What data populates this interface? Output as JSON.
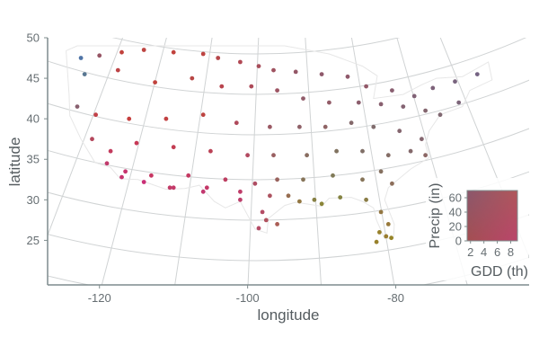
{
  "chart_data": {
    "type": "scatter",
    "title": "",
    "xlabel": "longitude",
    "ylabel": "latitude",
    "xlim": [
      -127,
      -62
    ],
    "ylim": [
      19.5,
      50
    ],
    "x_ticks": [
      "-120",
      "-100",
      "-80"
    ],
    "x_tick_values": [
      -120,
      -100,
      -80
    ],
    "y_ticks": [
      "25",
      "30",
      "35",
      "40",
      "45",
      "50"
    ],
    "y_tick_values": [
      25,
      30,
      35,
      40,
      45,
      50
    ],
    "grid": true,
    "projection": "conic",
    "legend": {
      "position": "bottom-right",
      "type": "bivariate",
      "xlabel": "GDD (th)",
      "ylabel": "Precip (in)",
      "x_ticks": [
        "2",
        "4",
        "6",
        "8"
      ],
      "x_range": [
        1.5,
        9
      ],
      "y_ticks": [
        "0",
        "20",
        "40",
        "60"
      ],
      "y_range": [
        0,
        70
      ],
      "colors": {
        "dry_cool": "#e03a10",
        "dry_warm": "#d21c9a",
        "wet_cool": "#2a7ad6",
        "wet_warm": "#8a9a10"
      }
    },
    "series": [
      {
        "color_rule": "bivariate GDD x precip",
        "x": [
          -122.5,
          -120.0,
          -117.0,
          -114.0,
          -110.0,
          -106.0,
          -104.0,
          -101.0,
          -98.5,
          -96.5,
          -93.5,
          -90.0,
          -86.5,
          -84.0,
          -80.5,
          -77.5,
          -75.0,
          -72.0,
          -69.0,
          -122.0,
          -117.5,
          -112.5,
          -107.5,
          -103.5,
          -99.5,
          -96.0,
          -92.5,
          -89.0,
          -85.0,
          -82.0,
          -79.0,
          -76.0,
          -74.0,
          -71.5,
          -123.0,
          -120.5,
          -116.0,
          -111.0,
          -106.0,
          -101.5,
          -97.0,
          -93.0,
          -89.5,
          -86.0,
          -83.0,
          -79.5,
          -76.5,
          -121.0,
          -118.5,
          -115.0,
          -110.0,
          -105.0,
          -100.0,
          -96.5,
          -92.0,
          -88.0,
          -84.5,
          -81.0,
          -78.0,
          -76.0,
          -119.0,
          -116.5,
          -113.0,
          -108.0,
          -103.0,
          -99.0,
          -96.0,
          -92.5,
          -88.5,
          -84.5,
          -82.0,
          -80.5,
          -117.0,
          -114.0,
          -110.0,
          -105.5,
          -101.0,
          -97.0,
          -94.5,
          -91.0,
          -87.5,
          -84.0,
          -82.0,
          -81.0,
          -110.5,
          -106.0,
          -101.0,
          -98.0,
          -96.0,
          -93.0,
          -90.0,
          -82.2,
          -81.3,
          -80.6,
          -98.5,
          -97.5,
          -82.6
        ],
        "y": [
          47.5,
          47.8,
          48.2,
          48.5,
          48.2,
          48.0,
          47.5,
          47.0,
          46.5,
          46.0,
          45.8,
          45.5,
          45.2,
          44.0,
          43.5,
          42.8,
          43.8,
          44.6,
          45.5,
          45.5,
          46.0,
          44.5,
          45.0,
          44.0,
          44.0,
          43.5,
          42.5,
          42.0,
          42.0,
          41.8,
          41.5,
          41.0,
          40.5,
          42.0,
          41.5,
          40.5,
          40.0,
          40.0,
          40.5,
          39.5,
          39.0,
          39.0,
          39.0,
          39.5,
          39.0,
          38.5,
          37.5,
          37.5,
          36.0,
          37.0,
          36.5,
          36.0,
          35.5,
          35.5,
          35.5,
          36.0,
          36.0,
          35.5,
          36.0,
          35.5,
          34.5,
          33.5,
          33.0,
          33.0,
          32.5,
          32.0,
          32.5,
          32.5,
          33.0,
          32.5,
          33.5,
          32.0,
          32.8,
          32.2,
          31.5,
          31.5,
          31.0,
          30.5,
          30.5,
          30.0,
          30.3,
          30.0,
          28.5,
          27.0,
          31.5,
          31.0,
          30.0,
          28.5,
          27.0,
          29.8,
          29.5,
          26.0,
          25.5,
          25.3,
          26.5,
          27.5,
          24.8
        ],
        "gdd": [
          2.5,
          2.5,
          2.5,
          2.5,
          2.5,
          2.5,
          3.0,
          3.5,
          3.5,
          3.5,
          3.0,
          3.0,
          3.0,
          3.5,
          3.5,
          3.5,
          3.0,
          3.0,
          2.5,
          3.5,
          3.0,
          2.5,
          2.5,
          3.5,
          4.0,
          4.0,
          4.0,
          4.5,
          4.0,
          4.0,
          4.0,
          4.5,
          4.5,
          3.5,
          4.0,
          3.5,
          3.0,
          3.0,
          2.5,
          4.5,
          5.0,
          5.0,
          5.5,
          5.0,
          5.0,
          4.5,
          4.5,
          5.0,
          5.5,
          5.0,
          4.5,
          4.5,
          5.5,
          6.0,
          6.0,
          6.0,
          5.5,
          5.5,
          5.0,
          5.5,
          7.0,
          7.0,
          6.0,
          6.0,
          6.0,
          6.5,
          6.5,
          6.5,
          6.5,
          6.5,
          6.0,
          6.5,
          7.0,
          7.5,
          6.5,
          6.5,
          7.0,
          7.5,
          7.5,
          7.5,
          7.5,
          7.5,
          8.0,
          8.5,
          6.5,
          7.5,
          7.5,
          8.0,
          8.5,
          8.0,
          8.0,
          9.0,
          9.0,
          9.0,
          8.5,
          8.5,
          9.0
        ],
        "precip": [
          60,
          30,
          12,
          14,
          12,
          14,
          17,
          20,
          24,
          28,
          32,
          34,
          34,
          34,
          38,
          42,
          42,
          44,
          44,
          60,
          14,
          12,
          16,
          16,
          22,
          30,
          36,
          36,
          38,
          40,
          42,
          44,
          46,
          44,
          40,
          12,
          10,
          12,
          14,
          22,
          34,
          40,
          42,
          46,
          48,
          44,
          44,
          20,
          12,
          10,
          12,
          16,
          22,
          38,
          48,
          52,
          50,
          48,
          46,
          44,
          14,
          10,
          10,
          12,
          16,
          26,
          40,
          52,
          56,
          52,
          50,
          48,
          10,
          8,
          12,
          12,
          16,
          30,
          46,
          58,
          60,
          56,
          52,
          52,
          14,
          14,
          18,
          26,
          36,
          52,
          60,
          56,
          54,
          58,
          26,
          30,
          56
        ]
      }
    ]
  }
}
